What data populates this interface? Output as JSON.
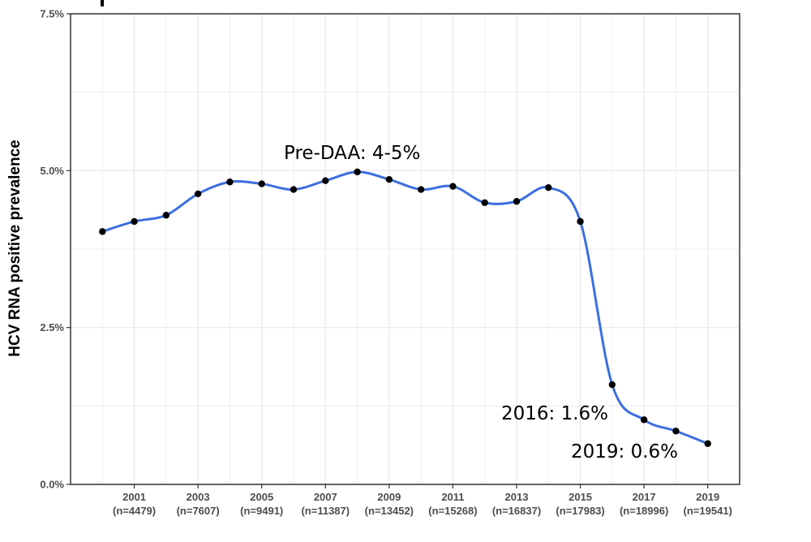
{
  "chart_data": {
    "type": "line",
    "title": "",
    "xlabel": "",
    "ylabel": "HCV RNA positive prevalence",
    "x": [
      2000,
      2001,
      2002,
      2003,
      2004,
      2005,
      2006,
      2007,
      2008,
      2009,
      2010,
      2011,
      2012,
      2013,
      2014,
      2015,
      2016,
      2017,
      2018,
      2019
    ],
    "series": [
      {
        "values": [
          4.03,
          4.19,
          4.29,
          4.63,
          4.82,
          4.79,
          4.7,
          4.84,
          4.98,
          4.86,
          4.7,
          4.75,
          4.49,
          4.51,
          4.73,
          4.19,
          1.59,
          1.03,
          0.85,
          0.65
        ]
      }
    ],
    "ylim": [
      0,
      7.5
    ],
    "xlim": [
      1999.0,
      2020.0
    ],
    "y_ticks": [
      "0.0%",
      "2.5%",
      "5.0%",
      "7.5%"
    ],
    "x_ticks": [
      {
        "year": "2001",
        "n": "(n=4479)"
      },
      {
        "year": "2003",
        "n": "(n=7607)"
      },
      {
        "year": "2005",
        "n": "(n=9491)"
      },
      {
        "year": "2007",
        "n": "(n=11387)"
      },
      {
        "year": "2009",
        "n": "(n=13452)"
      },
      {
        "year": "2011",
        "n": "(n=15268)"
      },
      {
        "year": "2013",
        "n": "(n=16837)"
      },
      {
        "year": "2015",
        "n": "(n=17983)"
      },
      {
        "year": "2017",
        "n": "(n=18996)"
      },
      {
        "year": "2019",
        "n": "(n=19541)"
      }
    ],
    "annotations": [
      "Pre-DAA: 4-5%",
      "2016: 1.6%",
      "2019: 0.6%"
    ],
    "grid": true,
    "legend": "none",
    "colors": {
      "line": "#3b6fe0",
      "point": "#000000",
      "grid": "#ebebeb",
      "panel_border": "#333333"
    }
  }
}
